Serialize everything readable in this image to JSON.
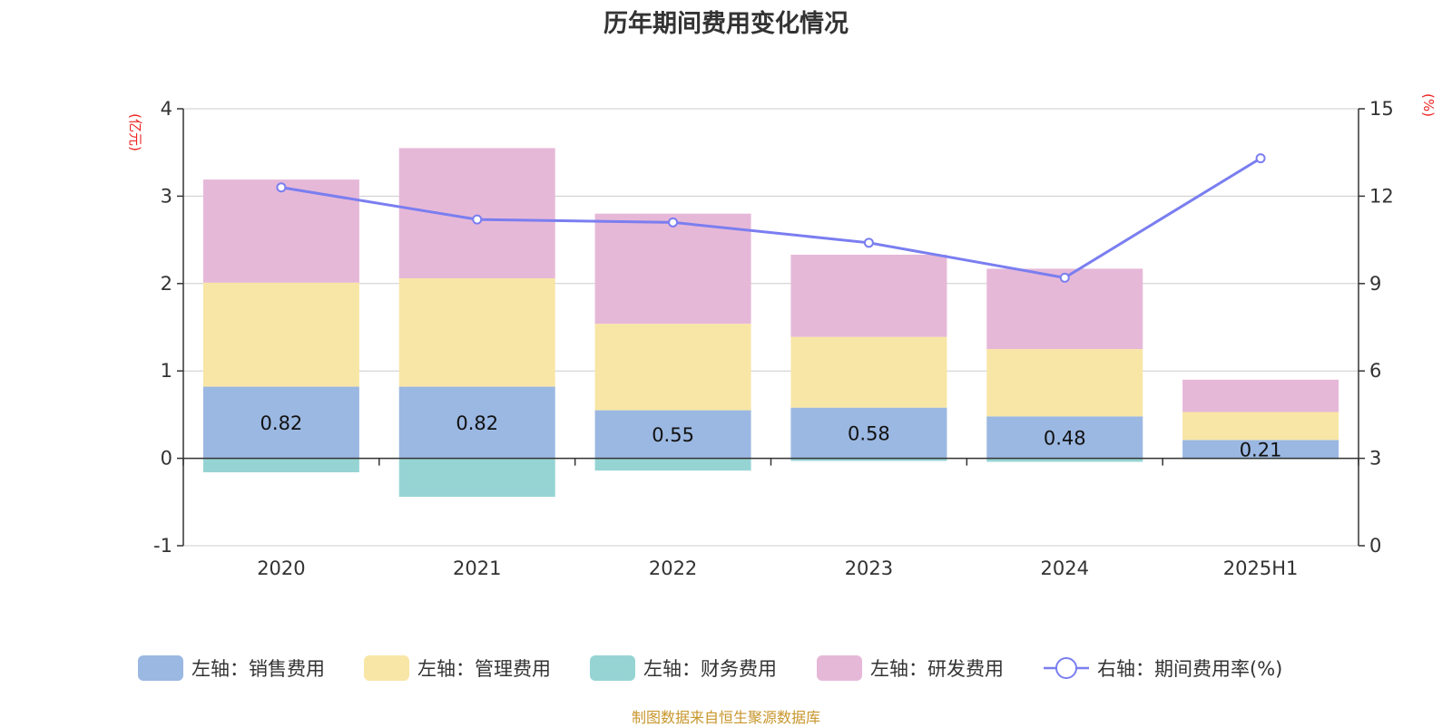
{
  "chart_data": {
    "type": "bar",
    "title": "历年期间费用变化情况",
    "categories": [
      "2020",
      "2021",
      "2022",
      "2023",
      "2024",
      "2025H1"
    ],
    "left_axis": {
      "unit": "(亿元)",
      "range": [
        -1,
        4
      ],
      "ticks": [
        "-1",
        "0",
        "1",
        "2",
        "3",
        "4"
      ]
    },
    "right_axis": {
      "unit": "(%)",
      "range": [
        0,
        15
      ],
      "ticks": [
        "0",
        "3",
        "6",
        "9",
        "12",
        "15"
      ]
    },
    "stacked_series": [
      {
        "name": "左轴：销售费用",
        "color": "#9bb8e2",
        "values": [
          0.82,
          0.82,
          0.55,
          0.58,
          0.48,
          0.21
        ],
        "labels": [
          "0.82",
          "0.82",
          "0.55",
          "0.58",
          "0.48",
          "0.21"
        ]
      },
      {
        "name": "左轴：管理费用",
        "color": "#f8e6a6",
        "values": [
          1.19,
          1.24,
          0.99,
          0.81,
          0.77,
          0.32
        ]
      },
      {
        "name": "左轴：财务费用",
        "color": "#96d4d4",
        "values": [
          -0.16,
          -0.44,
          -0.14,
          -0.03,
          -0.04,
          -0.01
        ]
      },
      {
        "name": "左轴：研发费用",
        "color": "#e6b8d8",
        "values": [
          1.18,
          1.49,
          1.26,
          0.94,
          0.92,
          0.37
        ]
      }
    ],
    "line_series": {
      "name": "右轴：期间费用率(%)",
      "color": "#7a7ef0",
      "values": [
        12.3,
        11.2,
        11.1,
        10.4,
        9.2,
        13.3
      ]
    },
    "legend_position": "bottom",
    "grid": true
  },
  "footer": {
    "source": "制图数据来自恒生聚源数据库"
  }
}
